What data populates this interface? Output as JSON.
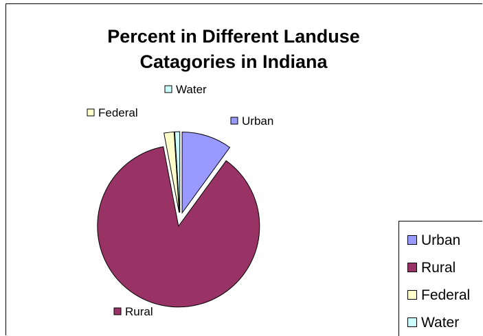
{
  "chart_data": {
    "type": "pie",
    "title": "Percent in Different Landuse Catagories in Indiana",
    "title_lines": [
      "Percent in Different Landuse",
      "Catagories in Indiana"
    ],
    "categories": [
      "Urban",
      "Rural",
      "Federal",
      "Water"
    ],
    "values": [
      10,
      87,
      2,
      1
    ],
    "colors": [
      "#9999ff",
      "#993366",
      "#ffffcc",
      "#ccffff"
    ],
    "exploded": true,
    "legend": {
      "position": "right",
      "items": [
        "Urban",
        "Rural",
        "Federal",
        "Water"
      ]
    }
  }
}
